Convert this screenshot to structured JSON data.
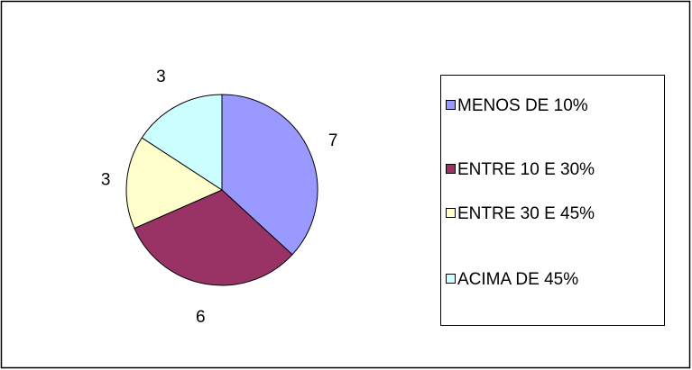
{
  "chart_data": {
    "type": "pie",
    "categories": [
      "MENOS DE 10%",
      "ENTRE 10 E 30%",
      "ENTRE 30 E 45%",
      "ACIMA DE 45%"
    ],
    "values": [
      7,
      6,
      3,
      3
    ],
    "colors": [
      "#9999ff",
      "#993366",
      "#ffffcc",
      "#ccffff"
    ],
    "legend": "right"
  }
}
